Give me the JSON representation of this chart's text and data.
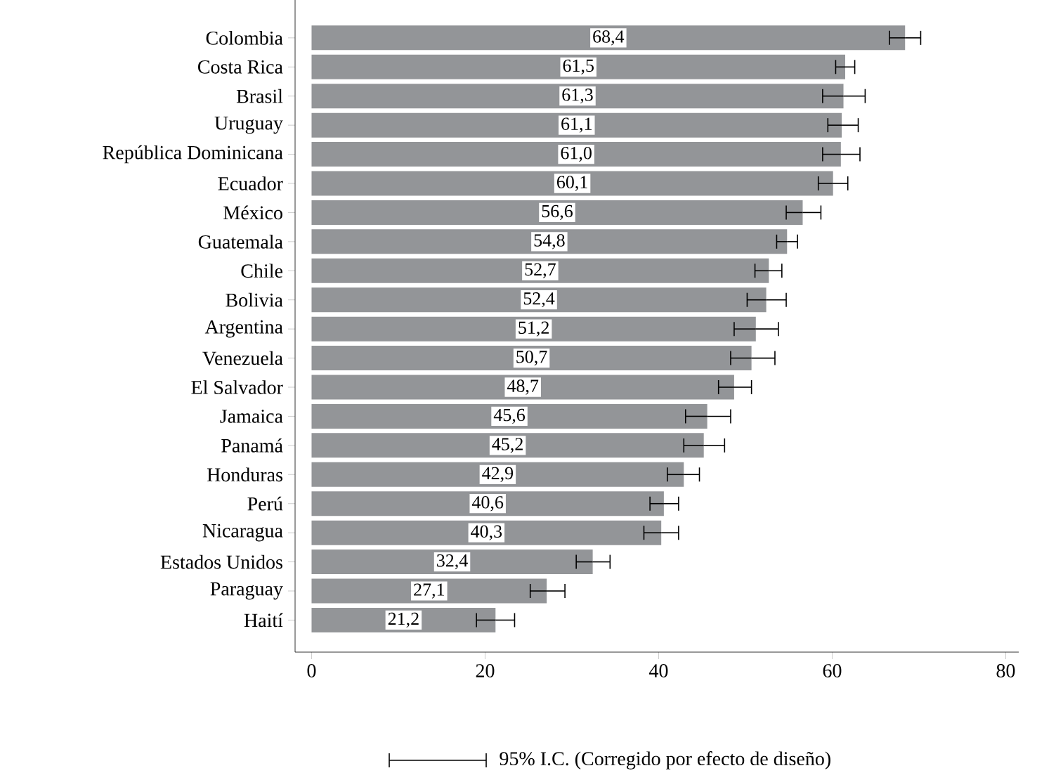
{
  "chart_data": {
    "type": "bar",
    "orientation": "horizontal",
    "categories": [
      "Colombia",
      "Costa Rica",
      "Brasil",
      "Uruguay",
      "República Dominicana",
      "Ecuador",
      "México",
      "Guatemala",
      "Chile",
      "Bolivia",
      "Argentina",
      "Venezuela",
      "El Salvador",
      "Jamaica",
      "Panamá",
      "Honduras",
      "Perú",
      "Nicaragua",
      "Estados Unidos",
      "Paraguay",
      "Haití"
    ],
    "values": [
      68.4,
      61.5,
      61.3,
      61.1,
      61.0,
      60.1,
      56.6,
      54.8,
      52.7,
      52.4,
      51.2,
      50.7,
      48.7,
      45.6,
      45.2,
      42.9,
      40.6,
      40.3,
      32.4,
      27.1,
      21.2
    ],
    "value_labels": [
      "68,4",
      "61,5",
      "61,3",
      "61,1",
      "61,0",
      "60,1",
      "56,6",
      "54,8",
      "52,7",
      "52,4",
      "51,2",
      "50,7",
      "48,7",
      "45,6",
      "45,2",
      "42,9",
      "40,6",
      "40,3",
      "32,4",
      "27,1",
      "21,2"
    ],
    "errors": [
      [
        66.6,
        70.2
      ],
      [
        60.4,
        62.6
      ],
      [
        58.9,
        63.8
      ],
      [
        59.5,
        63.0
      ],
      [
        58.9,
        63.2
      ],
      [
        58.4,
        61.8
      ],
      [
        54.7,
        58.7
      ],
      [
        53.6,
        56.0
      ],
      [
        51.1,
        54.2
      ],
      [
        50.2,
        54.7
      ],
      [
        48.7,
        53.8
      ],
      [
        48.3,
        53.4
      ],
      [
        46.9,
        50.7
      ],
      [
        43.1,
        48.3
      ],
      [
        42.9,
        47.6
      ],
      [
        41.0,
        44.7
      ],
      [
        39.0,
        42.3
      ],
      [
        38.3,
        42.3
      ],
      [
        30.5,
        34.4
      ],
      [
        25.2,
        29.2
      ],
      [
        19.0,
        23.4
      ]
    ],
    "color": "#939598",
    "xlim": [
      -1.9,
      81.5
    ],
    "xticks": [
      0,
      20,
      40,
      60,
      80
    ],
    "annotations": [
      "95% I.C. (Corregido por efecto de diseño)"
    ]
  }
}
